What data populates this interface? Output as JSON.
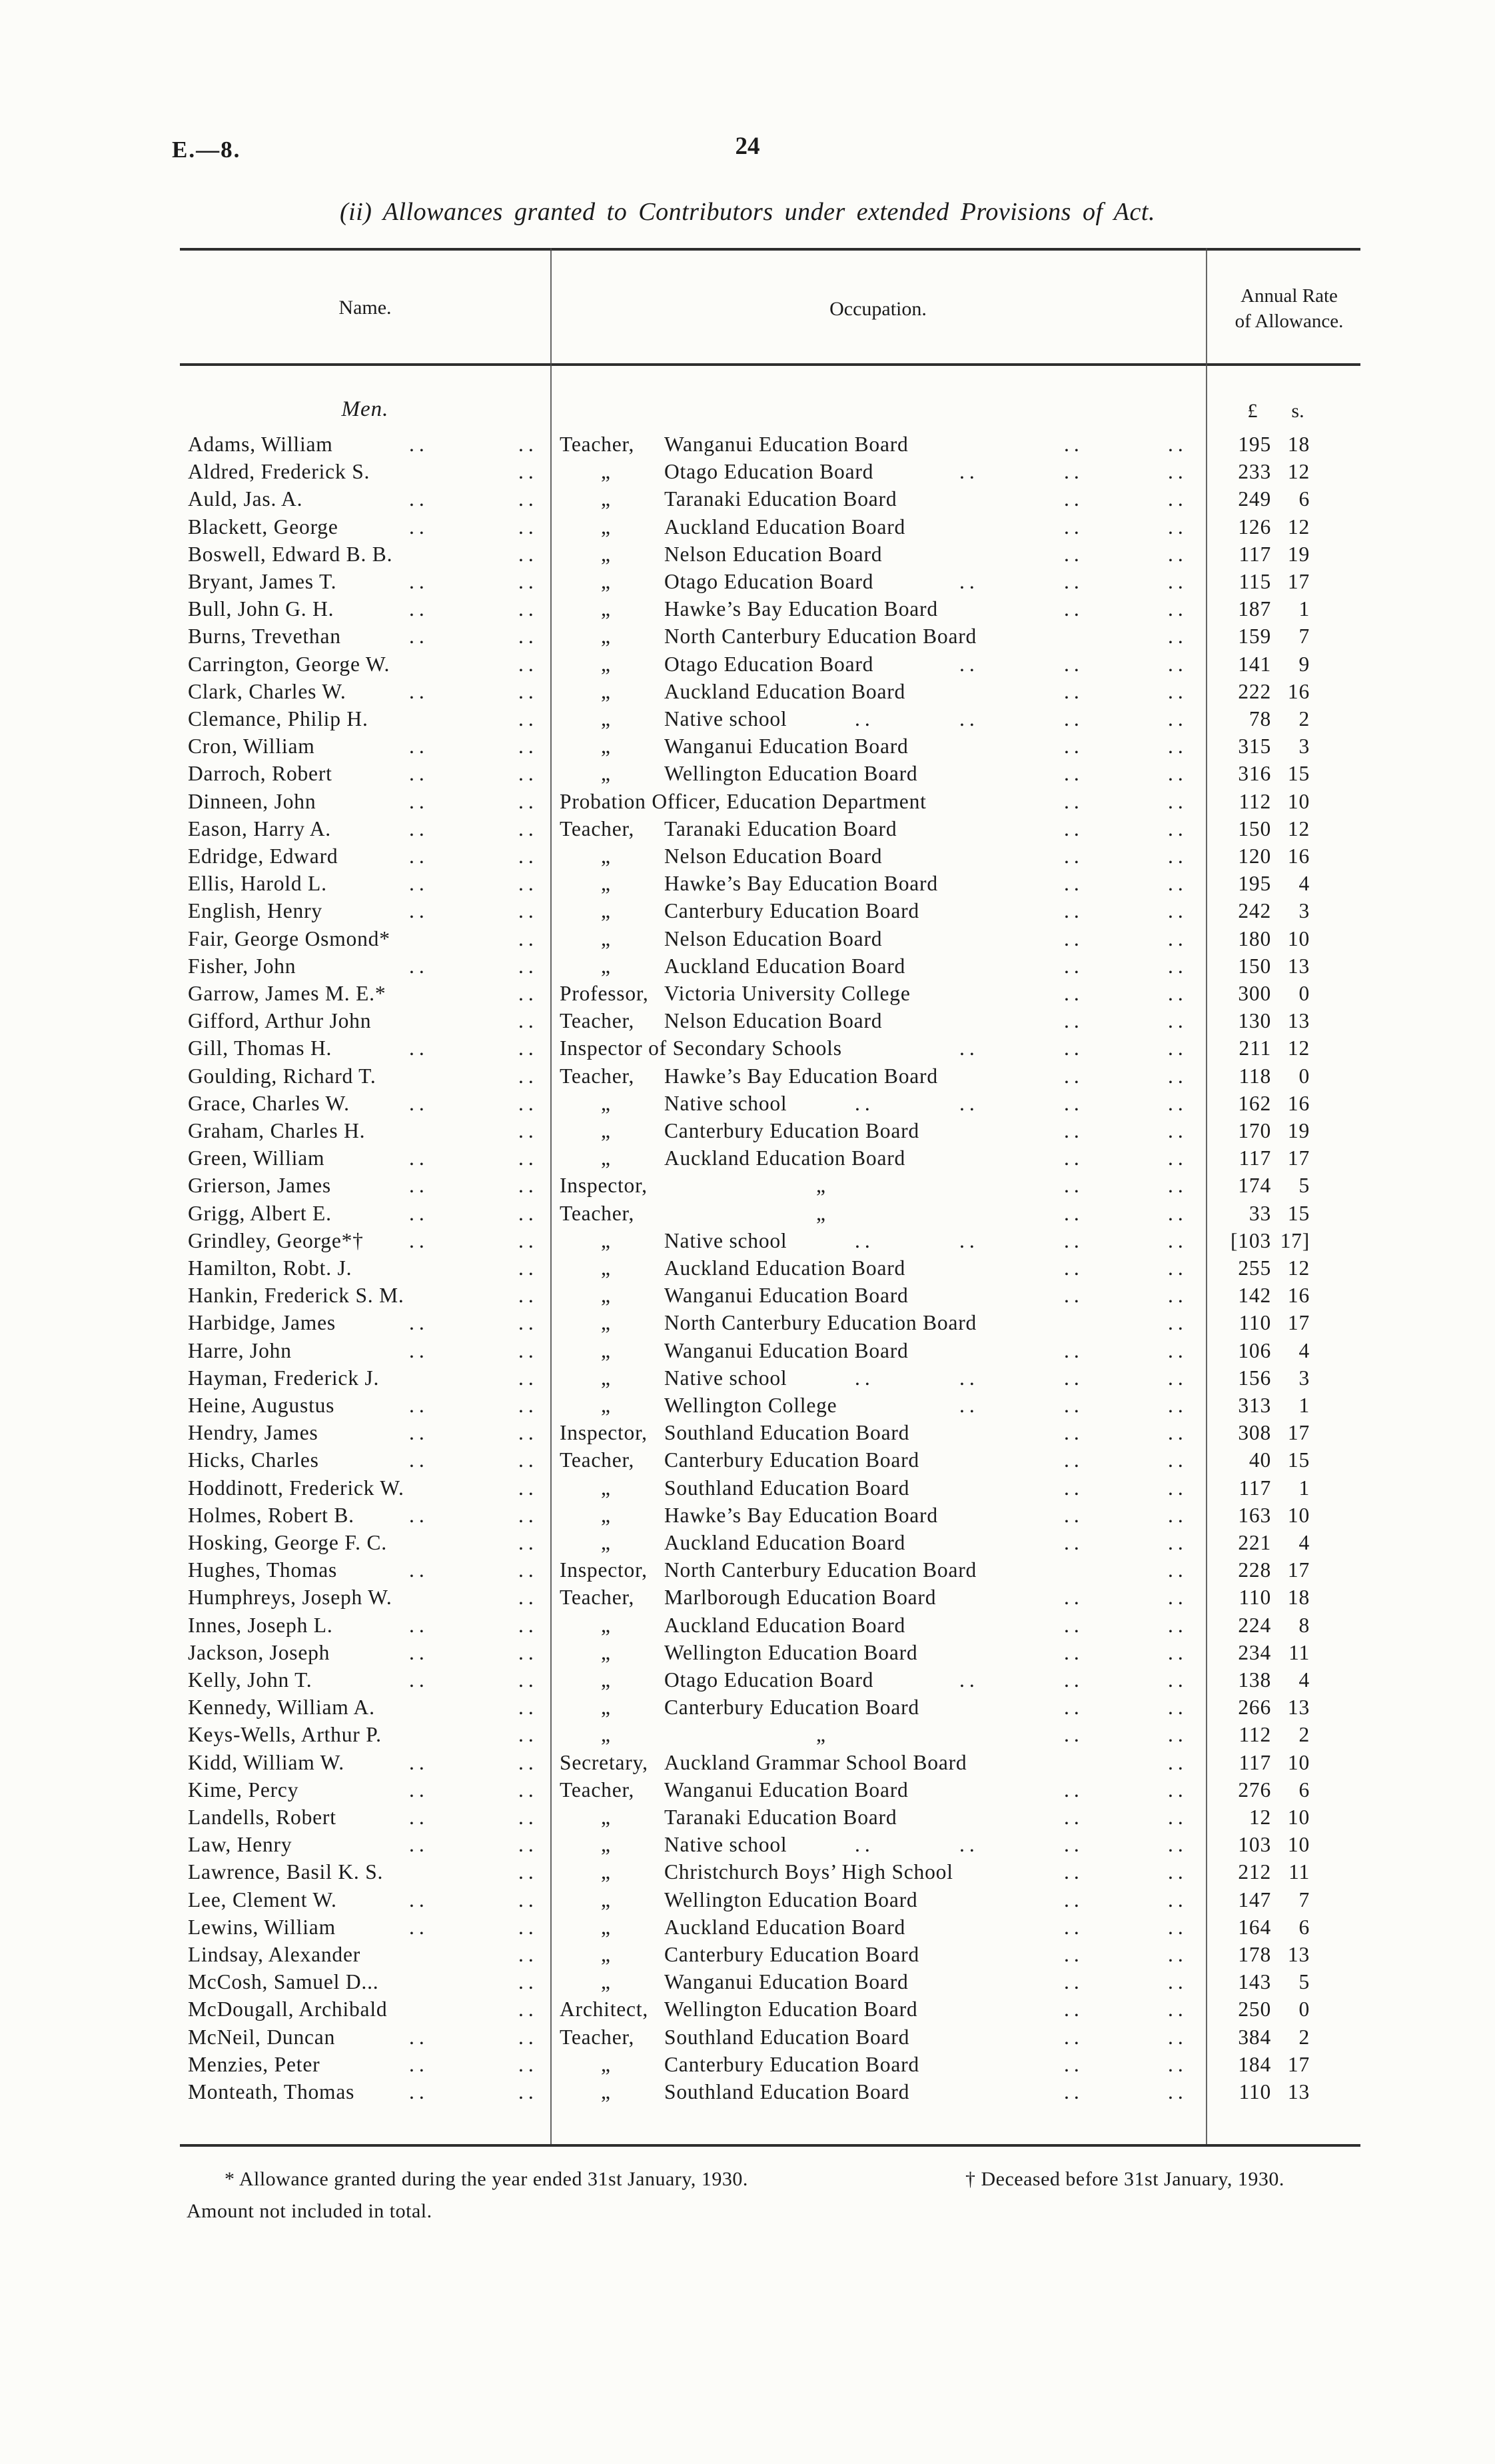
{
  "page": {
    "doc_ref": "E.—8.",
    "page_number": "24",
    "title": "(ii) Allowances granted to Contributors under extended Provisions of Act.",
    "columns": {
      "name": "Name.",
      "occupation": "Occupation.",
      "rate_line1": "Annual Rate",
      "rate_line2": "of Allowance."
    },
    "group_header": "Men.",
    "currency_pounds": "£",
    "currency_shillings": "s.",
    "footnote_line1a": "* Allowance granted during the year ended 31st January, 1930.",
    "footnote_line1b": "† Deceased before 31st January, 1930.",
    "footnote_line2": "Amount not included in total."
  },
  "rows": [
    {
      "name": "Adams, William",
      "nd": [
        1,
        1
      ],
      "prefix": "Teacher,",
      "body": "Wanganui Education Board",
      "od": [
        0,
        0,
        1,
        1
      ],
      "pounds": "195",
      "shillings": "18"
    },
    {
      "name": "Aldred, Frederick S.",
      "nd": [
        0,
        1
      ],
      "prefix": "„",
      "body": "Otago Education Board",
      "od": [
        0,
        1,
        1,
        1
      ],
      "pounds": "233",
      "shillings": "12"
    },
    {
      "name": "Auld, Jas. A.",
      "nd": [
        1,
        1
      ],
      "prefix": "„",
      "body": "Taranaki Education Board",
      "od": [
        0,
        0,
        1,
        1
      ],
      "pounds": "249",
      "shillings": "6"
    },
    {
      "name": "Blackett, George",
      "nd": [
        1,
        1
      ],
      "prefix": "„",
      "body": "Auckland Education Board",
      "od": [
        0,
        0,
        1,
        1
      ],
      "pounds": "126",
      "shillings": "12"
    },
    {
      "name": "Boswell, Edward B. B.",
      "nd": [
        0,
        1
      ],
      "prefix": "„",
      "body": "Nelson Education Board",
      "od": [
        0,
        0,
        1,
        1
      ],
      "pounds": "117",
      "shillings": "19"
    },
    {
      "name": "Bryant, James T.",
      "nd": [
        1,
        1
      ],
      "prefix": "„",
      "body": "Otago Education Board",
      "od": [
        0,
        1,
        1,
        1
      ],
      "pounds": "115",
      "shillings": "17"
    },
    {
      "name": "Bull, John G. H.",
      "nd": [
        1,
        1
      ],
      "prefix": "„",
      "body": "Hawke’s Bay Education Board",
      "od": [
        0,
        0,
        1,
        1
      ],
      "pounds": "187",
      "shillings": "1"
    },
    {
      "name": "Burns, Trevethan",
      "nd": [
        1,
        1
      ],
      "prefix": "„",
      "body": "North Canterbury Education Board",
      "od": [
        0,
        0,
        0,
        1
      ],
      "pounds": "159",
      "shillings": "7"
    },
    {
      "name": "Carrington, George W.",
      "nd": [
        0,
        1
      ],
      "prefix": "„",
      "body": "Otago Education Board",
      "od": [
        0,
        1,
        1,
        1
      ],
      "pounds": "141",
      "shillings": "9"
    },
    {
      "name": "Clark, Charles W.",
      "nd": [
        1,
        1
      ],
      "prefix": "„",
      "body": "Auckland Education Board",
      "od": [
        0,
        0,
        1,
        1
      ],
      "pounds": "222",
      "shillings": "16"
    },
    {
      "name": "Clemance, Philip H.",
      "nd": [
        0,
        1
      ],
      "prefix": "„",
      "body": "Native school",
      "od": [
        1,
        1,
        1,
        1
      ],
      "pounds": "78",
      "shillings": "2"
    },
    {
      "name": "Cron, William",
      "nd": [
        1,
        1
      ],
      "prefix": "„",
      "body": "Wanganui Education Board",
      "od": [
        0,
        0,
        1,
        1
      ],
      "pounds": "315",
      "shillings": "3"
    },
    {
      "name": "Darroch, Robert",
      "nd": [
        1,
        1
      ],
      "prefix": "„",
      "body": "Wellington Education Board",
      "od": [
        0,
        0,
        1,
        1
      ],
      "pounds": "316",
      "shillings": "15"
    },
    {
      "name": "Dinneen, John",
      "nd": [
        1,
        1
      ],
      "prefix": "Probation Officer, Education Department",
      "body": "",
      "od": [
        0,
        0,
        1,
        1
      ],
      "pounds": "112",
      "shillings": "10"
    },
    {
      "name": "Eason, Harry A.",
      "nd": [
        1,
        1
      ],
      "prefix": "Teacher,",
      "body": "Taranaki Education Board",
      "od": [
        0,
        0,
        1,
        1
      ],
      "pounds": "150",
      "shillings": "12"
    },
    {
      "name": "Edridge, Edward",
      "nd": [
        1,
        1
      ],
      "prefix": "„",
      "body": "Nelson Education Board",
      "od": [
        0,
        0,
        1,
        1
      ],
      "pounds": "120",
      "shillings": "16"
    },
    {
      "name": "Ellis, Harold L.",
      "nd": [
        1,
        1
      ],
      "prefix": "„",
      "body": "Hawke’s Bay Education Board",
      "od": [
        0,
        0,
        1,
        1
      ],
      "pounds": "195",
      "shillings": "4"
    },
    {
      "name": "English, Henry",
      "nd": [
        1,
        1
      ],
      "prefix": "„",
      "body": "Canterbury Education Board",
      "od": [
        0,
        0,
        1,
        1
      ],
      "pounds": "242",
      "shillings": "3"
    },
    {
      "name": "Fair, George Osmond*",
      "nd": [
        0,
        1
      ],
      "prefix": "„",
      "body": "Nelson Education Board",
      "od": [
        0,
        0,
        1,
        1
      ],
      "pounds": "180",
      "shillings": "10"
    },
    {
      "name": "Fisher, John",
      "nd": [
        1,
        1
      ],
      "prefix": "„",
      "body": "Auckland Education Board",
      "od": [
        0,
        0,
        1,
        1
      ],
      "pounds": "150",
      "shillings": "13"
    },
    {
      "name": "Garrow, James M. E.*",
      "nd": [
        0,
        1
      ],
      "prefix": "Professor,",
      "body": "Victoria University College",
      "od": [
        0,
        0,
        1,
        1
      ],
      "pounds": "300",
      "shillings": "0"
    },
    {
      "name": "Gifford, Arthur John",
      "nd": [
        0,
        1
      ],
      "prefix": "Teacher,",
      "body": "Nelson Education Board",
      "od": [
        0,
        0,
        1,
        1
      ],
      "pounds": "130",
      "shillings": "13"
    },
    {
      "name": "Gill, Thomas H.",
      "nd": [
        1,
        1
      ],
      "prefix": "Inspector of Secondary Schools",
      "body": "",
      "od": [
        0,
        1,
        1,
        1
      ],
      "pounds": "211",
      "shillings": "12"
    },
    {
      "name": "Goulding, Richard T.",
      "nd": [
        0,
        1
      ],
      "prefix": "Teacher,",
      "body": "Hawke’s Bay Education Board",
      "od": [
        0,
        0,
        1,
        1
      ],
      "pounds": "118",
      "shillings": "0"
    },
    {
      "name": "Grace, Charles W.",
      "nd": [
        1,
        1
      ],
      "prefix": "„",
      "body": "Native school",
      "od": [
        1,
        1,
        1,
        1
      ],
      "pounds": "162",
      "shillings": "16"
    },
    {
      "name": "Graham, Charles H.",
      "nd": [
        0,
        1
      ],
      "prefix": "„",
      "body": "Canterbury Education Board",
      "od": [
        0,
        0,
        1,
        1
      ],
      "pounds": "170",
      "shillings": "19"
    },
    {
      "name": "Green, William",
      "nd": [
        1,
        1
      ],
      "prefix": "„",
      "body": "Auckland Education Board",
      "od": [
        0,
        0,
        1,
        1
      ],
      "pounds": "117",
      "shillings": "17"
    },
    {
      "name": "Grierson, James",
      "nd": [
        1,
        1
      ],
      "prefix": "Inspector,",
      "body": "„",
      "od": [
        0,
        0,
        1,
        1
      ],
      "pounds": "174",
      "shillings": "5"
    },
    {
      "name": "Grigg, Albert E.",
      "nd": [
        1,
        1
      ],
      "prefix": "Teacher,",
      "body": "„",
      "od": [
        0,
        0,
        1,
        1
      ],
      "pounds": "33",
      "shillings": "15"
    },
    {
      "name": "Grindley, George*†",
      "nd": [
        1,
        1
      ],
      "prefix": "„",
      "body": "Native school",
      "od": [
        1,
        1,
        1,
        1
      ],
      "pounds": "[103",
      "shillings": "17]"
    },
    {
      "name": "Hamilton, Robt. J.",
      "nd": [
        0,
        1
      ],
      "prefix": "„",
      "body": "Auckland Education Board",
      "od": [
        0,
        0,
        1,
        1
      ],
      "pounds": "255",
      "shillings": "12"
    },
    {
      "name": "Hankin, Frederick S. M.",
      "nd": [
        0,
        1
      ],
      "prefix": "„",
      "body": "Wanganui Education Board",
      "od": [
        0,
        0,
        1,
        1
      ],
      "pounds": "142",
      "shillings": "16"
    },
    {
      "name": "Harbidge, James",
      "nd": [
        1,
        1
      ],
      "prefix": "„",
      "body": "North Canterbury Education Board",
      "od": [
        0,
        0,
        0,
        1
      ],
      "pounds": "110",
      "shillings": "17"
    },
    {
      "name": "Harre, John",
      "nd": [
        1,
        1
      ],
      "prefix": "„",
      "body": "Wanganui Education Board",
      "od": [
        0,
        0,
        1,
        1
      ],
      "pounds": "106",
      "shillings": "4"
    },
    {
      "name": "Hayman, Frederick J.",
      "nd": [
        0,
        1
      ],
      "prefix": "„",
      "body": "Native school",
      "od": [
        1,
        1,
        1,
        1
      ],
      "pounds": "156",
      "shillings": "3"
    },
    {
      "name": "Heine, Augustus",
      "nd": [
        1,
        1
      ],
      "prefix": "„",
      "body": "Wellington College",
      "od": [
        0,
        1,
        1,
        1
      ],
      "pounds": "313",
      "shillings": "1"
    },
    {
      "name": "Hendry, James",
      "nd": [
        1,
        1
      ],
      "prefix": "Inspector,",
      "body": "Southland Education Board",
      "od": [
        0,
        0,
        1,
        1
      ],
      "pounds": "308",
      "shillings": "17"
    },
    {
      "name": "Hicks, Charles",
      "nd": [
        1,
        1
      ],
      "prefix": "Teacher,",
      "body": "Canterbury Education Board",
      "od": [
        0,
        0,
        1,
        1
      ],
      "pounds": "40",
      "shillings": "15"
    },
    {
      "name": "Hoddinott, Frederick W.",
      "nd": [
        0,
        1
      ],
      "prefix": "„",
      "body": "Southland Education Board",
      "od": [
        0,
        0,
        1,
        1
      ],
      "pounds": "117",
      "shillings": "1"
    },
    {
      "name": "Holmes, Robert B.",
      "nd": [
        1,
        1
      ],
      "prefix": "„",
      "body": "Hawke’s Bay Education Board",
      "od": [
        0,
        0,
        1,
        1
      ],
      "pounds": "163",
      "shillings": "10"
    },
    {
      "name": "Hosking, George F. C.",
      "nd": [
        0,
        1
      ],
      "prefix": "„",
      "body": "Auckland Education Board",
      "od": [
        0,
        0,
        1,
        1
      ],
      "pounds": "221",
      "shillings": "4"
    },
    {
      "name": "Hughes, Thomas",
      "nd": [
        1,
        1
      ],
      "prefix": "Inspector,",
      "body": "North Canterbury Education Board",
      "od": [
        0,
        0,
        0,
        1
      ],
      "pounds": "228",
      "shillings": "17"
    },
    {
      "name": "Humphreys, Joseph W.",
      "nd": [
        0,
        1
      ],
      "prefix": "Teacher,",
      "body": "Marlborough Education Board",
      "od": [
        0,
        0,
        1,
        1
      ],
      "pounds": "110",
      "shillings": "18"
    },
    {
      "name": "Innes, Joseph L.",
      "nd": [
        1,
        1
      ],
      "prefix": "„",
      "body": "Auckland Education Board",
      "od": [
        0,
        0,
        1,
        1
      ],
      "pounds": "224",
      "shillings": "8"
    },
    {
      "name": "Jackson, Joseph",
      "nd": [
        1,
        1
      ],
      "prefix": "„",
      "body": "Wellington Education Board",
      "od": [
        0,
        0,
        1,
        1
      ],
      "pounds": "234",
      "shillings": "11"
    },
    {
      "name": "Kelly, John T.",
      "nd": [
        1,
        1
      ],
      "prefix": "„",
      "body": "Otago Education Board",
      "od": [
        0,
        1,
        1,
        1
      ],
      "pounds": "138",
      "shillings": "4"
    },
    {
      "name": "Kennedy, William A.",
      "nd": [
        0,
        1
      ],
      "prefix": "„",
      "body": "Canterbury Education Board",
      "od": [
        0,
        0,
        1,
        1
      ],
      "pounds": "266",
      "shillings": "13"
    },
    {
      "name": "Keys-Wells, Arthur P.",
      "nd": [
        0,
        1
      ],
      "prefix": "„",
      "body": "„",
      "od": [
        0,
        0,
        1,
        1
      ],
      "pounds": "112",
      "shillings": "2"
    },
    {
      "name": "Kidd, William W.",
      "nd": [
        1,
        1
      ],
      "prefix": "Secretary,",
      "body": "Auckland Grammar School Board",
      "od": [
        0,
        0,
        0,
        1
      ],
      "pounds": "117",
      "shillings": "10"
    },
    {
      "name": "Kime, Percy",
      "nd": [
        1,
        1
      ],
      "prefix": "Teacher,",
      "body": "Wanganui Education Board",
      "od": [
        0,
        0,
        1,
        1
      ],
      "pounds": "276",
      "shillings": "6"
    },
    {
      "name": "Landells, Robert",
      "nd": [
        1,
        1
      ],
      "prefix": "„",
      "body": "Taranaki Education Board",
      "od": [
        0,
        0,
        1,
        1
      ],
      "pounds": "12",
      "shillings": "10"
    },
    {
      "name": "Law, Henry",
      "nd": [
        1,
        1
      ],
      "prefix": "„",
      "body": "Native school",
      "od": [
        1,
        1,
        1,
        1
      ],
      "pounds": "103",
      "shillings": "10"
    },
    {
      "name": "Lawrence, Basil K. S.",
      "nd": [
        0,
        1
      ],
      "prefix": "„",
      "body": "Christchurch Boys’ High School",
      "od": [
        0,
        0,
        1,
        1
      ],
      "pounds": "212",
      "shillings": "11"
    },
    {
      "name": "Lee, Clement W.",
      "nd": [
        1,
        1
      ],
      "prefix": "„",
      "body": "Wellington Education Board",
      "od": [
        0,
        0,
        1,
        1
      ],
      "pounds": "147",
      "shillings": "7"
    },
    {
      "name": "Lewins, William",
      "nd": [
        1,
        1
      ],
      "prefix": "„",
      "body": "Auckland Education Board",
      "od": [
        0,
        0,
        1,
        1
      ],
      "pounds": "164",
      "shillings": "6"
    },
    {
      "name": "Lindsay, Alexander",
      "nd": [
        0,
        1
      ],
      "prefix": "„",
      "body": "Canterbury Education Board",
      "od": [
        0,
        0,
        1,
        1
      ],
      "pounds": "178",
      "shillings": "13"
    },
    {
      "name": "McCosh, Samuel D...",
      "nd": [
        0,
        1
      ],
      "prefix": "„",
      "body": "Wanganui Education Board",
      "od": [
        0,
        0,
        1,
        1
      ],
      "pounds": "143",
      "shillings": "5"
    },
    {
      "name": "McDougall, Archibald",
      "nd": [
        0,
        1
      ],
      "prefix": "Architect,",
      "body": "Wellington Education Board",
      "od": [
        0,
        0,
        1,
        1
      ],
      "pounds": "250",
      "shillings": "0"
    },
    {
      "name": "McNeil, Duncan",
      "nd": [
        1,
        1
      ],
      "prefix": "Teacher,",
      "body": "Southland Education Board",
      "od": [
        0,
        0,
        1,
        1
      ],
      "pounds": "384",
      "shillings": "2"
    },
    {
      "name": "Menzies, Peter",
      "nd": [
        1,
        1
      ],
      "prefix": "„",
      "body": "Canterbury Education Board",
      "od": [
        0,
        0,
        1,
        1
      ],
      "pounds": "184",
      "shillings": "17"
    },
    {
      "name": "Monteath, Thomas",
      "nd": [
        1,
        1
      ],
      "prefix": "„",
      "body": "Southland Education Board",
      "od": [
        0,
        0,
        1,
        1
      ],
      "pounds": "110",
      "shillings": "13"
    }
  ]
}
